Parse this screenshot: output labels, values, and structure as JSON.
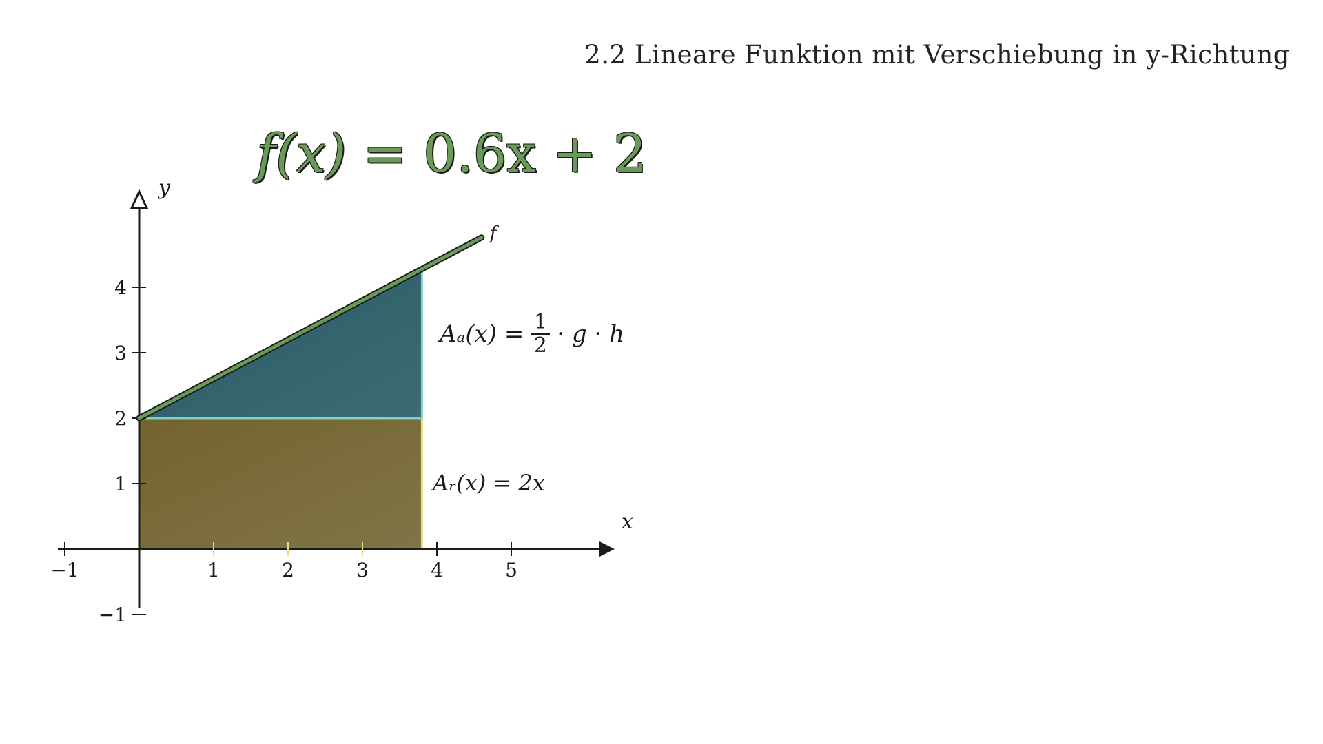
{
  "heading": "2.2 Lineare Funktion mit Verschiebung in y-Richtung",
  "formula": {
    "lhs": "f(x)",
    "rhs": " = 0.6x + 2"
  },
  "axes": {
    "x_label": "x",
    "y_label": "y"
  },
  "line_label": "f",
  "triangle_area": {
    "lhs": "Aₐ(x) =",
    "numerator": "1",
    "denominator": "2",
    "rhs": "· g · h"
  },
  "rectangle_area": "Aᵣ(x) = 2x",
  "colors": {
    "function_line": "#6a9a57",
    "triangle_fill": "#2e6470",
    "triangle_edge": "#7fd2c6",
    "rectangle_fill": "#7a6a35",
    "rectangle_edge": "#e8dd7a",
    "axis": "#1a1a1a"
  },
  "chart_data": {
    "type": "line",
    "title": "f(x) = 0.6x + 2",
    "xlabel": "x",
    "ylabel": "y",
    "xlim": [
      -1,
      6
    ],
    "ylim": [
      -1,
      5
    ],
    "x_ticks": [
      -1,
      1,
      2,
      3,
      4,
      5
    ],
    "x_tick_labels": [
      "−1",
      "1",
      "2",
      "3",
      "4",
      "5"
    ],
    "y_ticks": [
      -1,
      1,
      2,
      3,
      4
    ],
    "y_tick_labels": [
      "−1",
      "1",
      "2",
      "3",
      "4"
    ],
    "function": {
      "slope": 0.6,
      "intercept": 2,
      "x_start": 0,
      "x_end": 4.6
    },
    "shaded_x_end": 3.8,
    "regions": [
      {
        "name": "rectangle",
        "x": [
          0,
          3.8
        ],
        "y": [
          0,
          2
        ]
      },
      {
        "name": "triangle",
        "x": [
          0,
          3.8
        ],
        "y_base": 2
      }
    ]
  }
}
